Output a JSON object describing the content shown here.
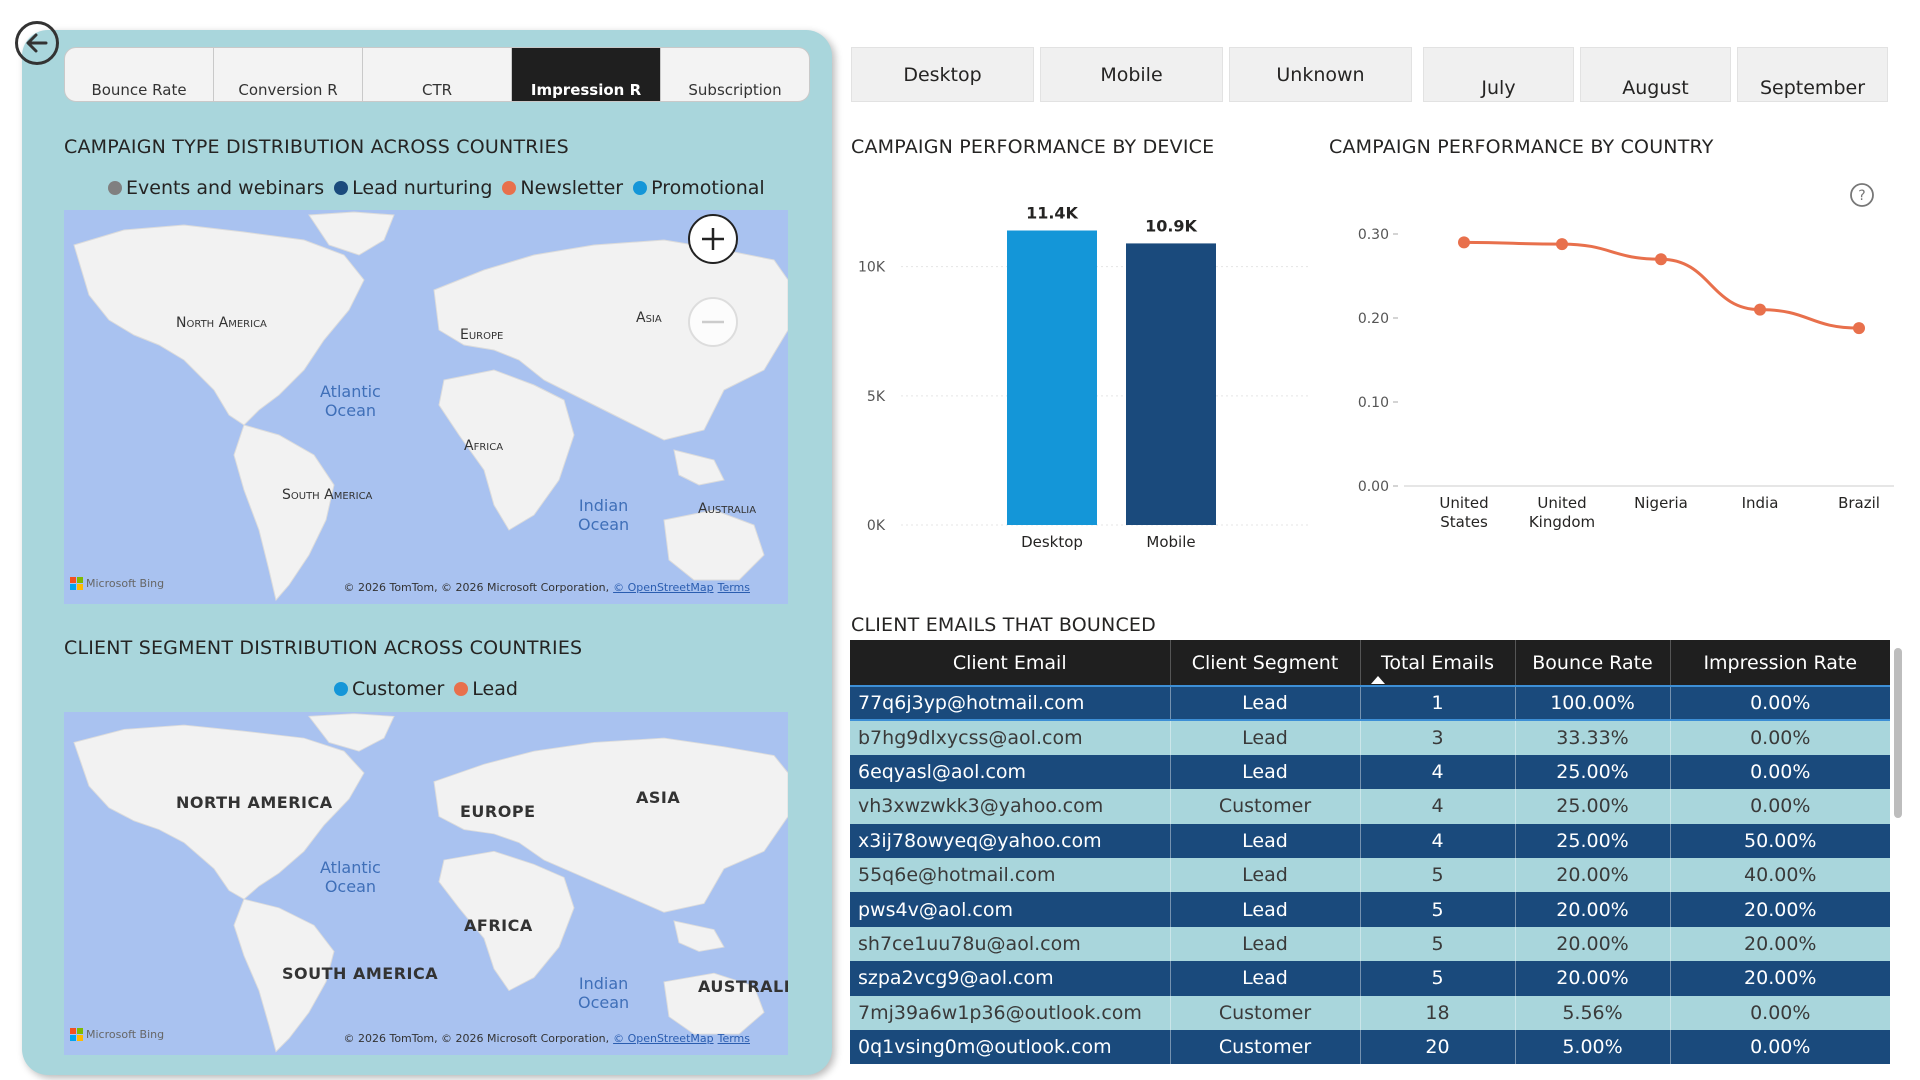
{
  "tabs": [
    {
      "label": "Bounce Rate",
      "active": false
    },
    {
      "label": "Conversion R",
      "active": false
    },
    {
      "label": "CTR",
      "active": false
    },
    {
      "label": "Impression R",
      "active": true
    },
    {
      "label": "Subscription",
      "active": false
    }
  ],
  "map1": {
    "title": "CAMPAIGN TYPE DISTRIBUTION ACROSS COUNTRIES",
    "legend": [
      {
        "label": "Events and webinars",
        "color": "#808080"
      },
      {
        "label": "Lead nurturing",
        "color": "#1a4a7c"
      },
      {
        "label": "Newsletter",
        "color": "#e8704c"
      },
      {
        "label": "Promotional",
        "color": "#1496d8"
      }
    ],
    "labels": {
      "na": "North America",
      "eu": "Europe",
      "as": "Asia",
      "af": "Africa",
      "sa": "South America",
      "au": "Australia",
      "atl": "Atlantic\nOcean",
      "ind": "Indian\nOcean"
    },
    "bing": "Microsoft Bing",
    "attribution": "© 2026 TomTom, © 2026 Microsoft Corporation,",
    "osm": "© OpenStreetMap",
    "terms": "Terms"
  },
  "map2": {
    "title": "CLIENT SEGMENT DISTRIBUTION ACROSS COUNTRIES",
    "legend": [
      {
        "label": "Customer",
        "color": "#1496d8"
      },
      {
        "label": "Lead",
        "color": "#e8704c"
      }
    ],
    "labels": {
      "na": "NORTH AMERICA",
      "eu": "EUROPE",
      "as": "ASIA",
      "af": "AFRICA",
      "sa": "SOUTH AMERICA",
      "au": "AUSTRALIA",
      "atl": "Atlantic\nOcean",
      "ind": "Indian\nOcean"
    },
    "bing": "Microsoft Bing",
    "attribution": "© 2026 TomTom, © 2026 Microsoft Corporation,",
    "osm": "© OpenStreetMap",
    "terms": "Terms"
  },
  "device_slicer": [
    "Desktop",
    "Mobile",
    "Unknown"
  ],
  "month_slicer": [
    "July",
    "August",
    "September"
  ],
  "bar_chart": {
    "title": "CAMPAIGN PERFORMANCE BY DEVICE",
    "chart_data": {
      "type": "bar",
      "categories": [
        "Desktop",
        "Mobile"
      ],
      "values": [
        11400,
        10900
      ],
      "data_labels": [
        "11.4K",
        "10.9K"
      ],
      "colors": [
        "#1496d8",
        "#1a4a7c"
      ],
      "ylim": [
        0,
        12000
      ],
      "yticks": [
        0,
        5000,
        10000
      ],
      "ytick_labels": [
        "0K",
        "5K",
        "10K"
      ]
    }
  },
  "line_chart": {
    "title": "CAMPAIGN PERFORMANCE BY COUNTRY",
    "help_icon": "question-circle-icon",
    "chart_data": {
      "type": "line",
      "categories": [
        "United States",
        "United Kingdom",
        "Nigeria",
        "India",
        "Brazil"
      ],
      "category_lines": [
        [
          "United",
          "States"
        ],
        [
          "United",
          "Kingdom"
        ],
        [
          "Nigeria"
        ],
        [
          "India"
        ],
        [
          "Brazil"
        ]
      ],
      "values": [
        0.29,
        0.288,
        0.27,
        0.21,
        0.188
      ],
      "color": "#e8704c",
      "ylim": [
        0,
        0.3
      ],
      "yticks": [
        0,
        0.1,
        0.2,
        0.3
      ],
      "ytick_labels": [
        "0.00",
        "0.10",
        "0.20",
        "0.30"
      ]
    }
  },
  "table": {
    "title": "CLIENT EMAILS THAT BOUNCED",
    "columns": [
      "Client Email",
      "Client Segment",
      "Total Emails",
      "Bounce Rate",
      "Impression Rate"
    ],
    "rows": [
      [
        "77q6j3yp@hotmail.com",
        "Lead",
        "1",
        "100.00%",
        "0.00%"
      ],
      [
        "b7hg9dlxycss@aol.com",
        "Lead",
        "3",
        "33.33%",
        "0.00%"
      ],
      [
        "6eqyasl@aol.com",
        "Lead",
        "4",
        "25.00%",
        "0.00%"
      ],
      [
        "vh3xwzwkk3@yahoo.com",
        "Customer",
        "4",
        "25.00%",
        "0.00%"
      ],
      [
        "x3ij78owyeq@yahoo.com",
        "Lead",
        "4",
        "25.00%",
        "50.00%"
      ],
      [
        "55q6e@hotmail.com",
        "Lead",
        "5",
        "20.00%",
        "40.00%"
      ],
      [
        "pws4v@aol.com",
        "Lead",
        "5",
        "20.00%",
        "20.00%"
      ],
      [
        "sh7ce1uu78u@aol.com",
        "Lead",
        "5",
        "20.00%",
        "20.00%"
      ],
      [
        "szpa2vcg9@aol.com",
        "Lead",
        "5",
        "20.00%",
        "20.00%"
      ],
      [
        "7mj39a6w1p36@outlook.com",
        "Customer",
        "18",
        "5.56%",
        "0.00%"
      ],
      [
        "0q1vsing0m@outlook.com",
        "Customer",
        "20",
        "5.00%",
        "0.00%"
      ]
    ]
  },
  "colors": {
    "panel": "#a9d6dc",
    "dark_row": "#1a4a7c",
    "header": "#1f1f1f",
    "ocean": "#a9c2f0",
    "land": "#f2f2f2"
  }
}
